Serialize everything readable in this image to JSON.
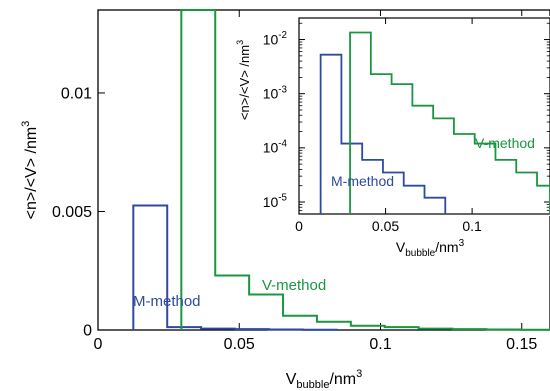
{
  "chart_data": [
    {
      "type": "step",
      "scale": "linear",
      "xlabel": {
        "main": "V",
        "sub": "bubble",
        "unit": "/nm",
        "sup": "3"
      },
      "ylabel": {
        "main": "<n>/<V> /nm",
        "sup": "3"
      },
      "xlim": [
        0,
        0.16
      ],
      "ylim": [
        0,
        0.0135
      ],
      "x_ticks": [
        {
          "v": 0,
          "label": "0"
        },
        {
          "v": 0.05,
          "label": "0.05"
        },
        {
          "v": 0.1,
          "label": "0.1"
        },
        {
          "v": 0.15,
          "label": "0.15"
        }
      ],
      "y_ticks": [
        {
          "v": 0,
          "label": "0"
        },
        {
          "v": 0.005,
          "label": "0.005"
        },
        {
          "v": 0.01,
          "label": "0.01"
        }
      ],
      "series": [
        {
          "name": "M-method",
          "color": "#2e4a9e",
          "edges": [
            0.0125,
            0.0245,
            0.0365,
            0.0485,
            0.0605,
            0.0725,
            0.0845
          ],
          "values": [
            0.00525,
            0.00012,
            6e-05,
            3.5e-05,
            2e-05,
            1.2e-05
          ]
        },
        {
          "name": "V-method",
          "color": "#1a9641",
          "edges": [
            0.0295,
            0.0415,
            0.0535,
            0.0655,
            0.0775,
            0.0895,
            0.1015,
            0.1135,
            0.1255,
            0.1375,
            0.1495,
            0.16
          ],
          "values": [
            0.0135,
            0.0023,
            0.0015,
            0.0006,
            0.00035,
            0.00018,
            0.00012,
            6e-05,
            3.5e-05,
            2e-05,
            1.2e-05
          ]
        }
      ],
      "annotations": [
        "M-method",
        "V-method"
      ]
    },
    {
      "type": "step",
      "scale": "log-y",
      "xlabel": {
        "main": "V",
        "sub": "bubble",
        "unit": "/nm",
        "sup": "3"
      },
      "ylabel": {
        "main": "<n>/<V> /nm",
        "sup": "3"
      },
      "xlim": [
        0,
        0.145
      ],
      "ylim": [
        6e-06,
        0.025
      ],
      "x_ticks": [
        {
          "v": 0,
          "label": "0"
        },
        {
          "v": 0.05,
          "label": "0.05"
        },
        {
          "v": 0.1,
          "label": "0.1"
        }
      ],
      "y_ticks": [
        {
          "v": 1e-05,
          "base": "10",
          "exp": "-5"
        },
        {
          "v": 0.0001,
          "base": "10",
          "exp": "-4"
        },
        {
          "v": 0.001,
          "base": "10",
          "exp": "-3"
        },
        {
          "v": 0.01,
          "base": "10",
          "exp": "-2"
        }
      ],
      "series": [
        {
          "name": "M-method",
          "color": "#2e4a9e",
          "edges": [
            0.0125,
            0.0245,
            0.0365,
            0.0485,
            0.0605,
            0.0725,
            0.0845
          ],
          "values": [
            0.00525,
            0.00012,
            6e-05,
            3.5e-05,
            2e-05,
            1.2e-05
          ]
        },
        {
          "name": "V-method",
          "color": "#1a9641",
          "edges": [
            0.0295,
            0.0415,
            0.0535,
            0.0655,
            0.0775,
            0.0895,
            0.1015,
            0.1135,
            0.1255,
            0.1375,
            0.145
          ],
          "values": [
            0.0135,
            0.0023,
            0.0015,
            0.0006,
            0.00035,
            0.00018,
            0.00012,
            6e-05,
            3.5e-05,
            2e-05
          ]
        }
      ],
      "annotations": [
        "M-method",
        "V-method"
      ]
    }
  ]
}
